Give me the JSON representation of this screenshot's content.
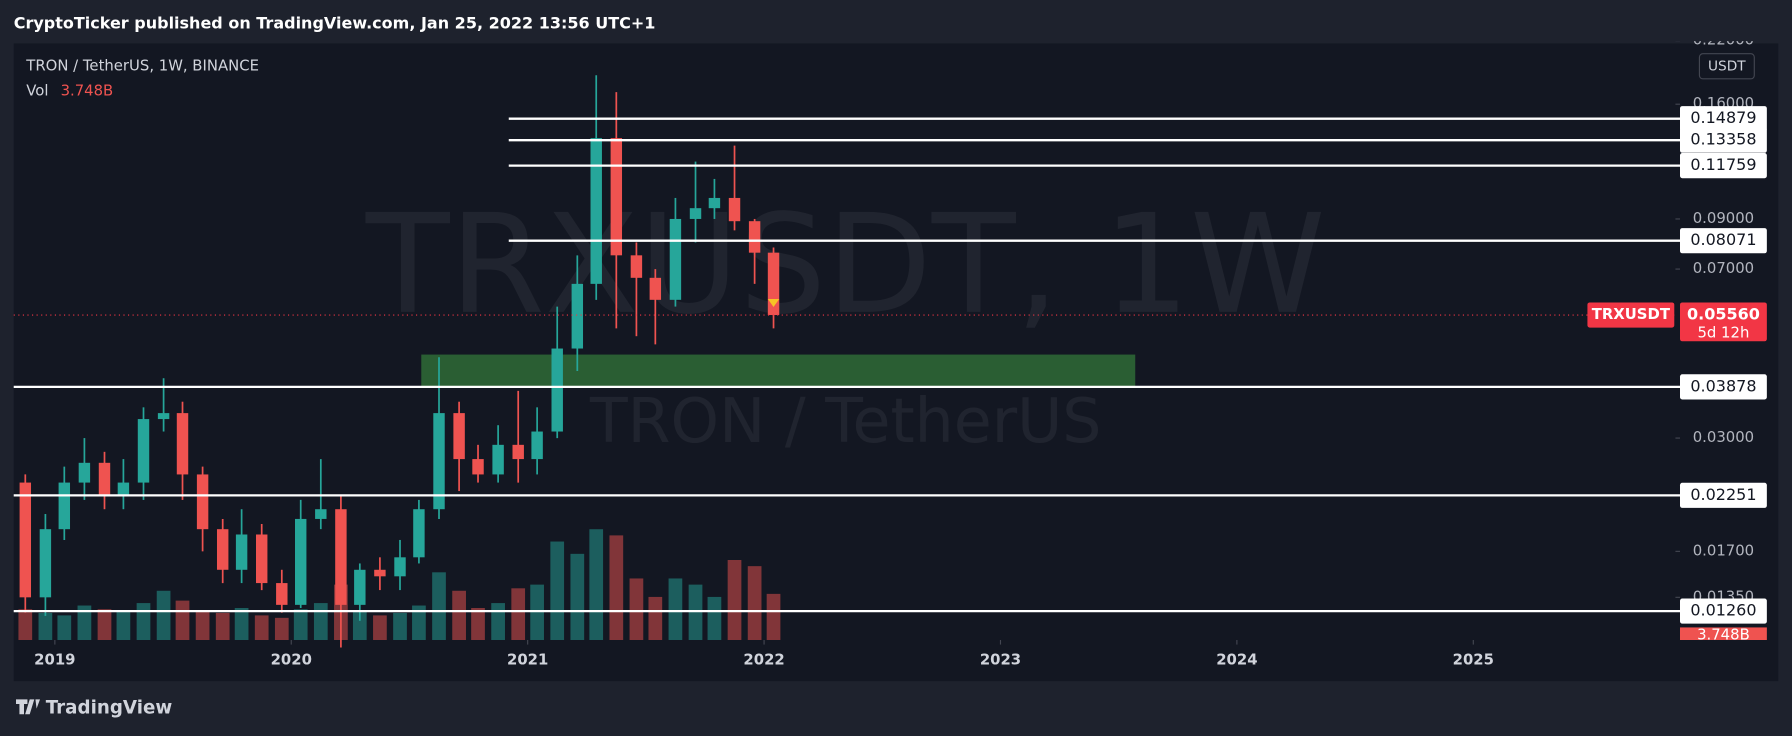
{
  "page": {
    "header": "CryptoTicker published on TradingView.com, Jan 25, 2022 13:56 UTC+1",
    "footer": "TradingView"
  },
  "chart_data": {
    "type": "candlestick",
    "title": "TRON / TetherUS, 1W, BINANCE",
    "watermark": "TRXUSDT, 1W",
    "watermark_subtitle": "TRON / TetherUS",
    "currency": "USDT",
    "log_scale": true,
    "up_color": "#26a69a",
    "down_color": "#ef5350",
    "xlim": [
      2018.826,
      2025.855
    ],
    "xticks": [
      2019,
      2020,
      2021,
      2022,
      2023,
      2024,
      2025
    ],
    "ylim": [
      0.0109,
      0.217
    ],
    "yticks": [
      {
        "value": 0.22,
        "label": "0.22000"
      },
      {
        "value": 0.16,
        "label": "0.16000"
      },
      {
        "value": 0.09,
        "label": "0.09000"
      },
      {
        "value": 0.07,
        "label": "0.07000"
      },
      {
        "value": 0.03,
        "label": "0.03000"
      },
      {
        "value": 0.017,
        "label": "0.01700"
      },
      {
        "value": 0.0135,
        "label": "0.01350"
      }
    ],
    "x": [
      2018.875,
      2018.96,
      2019.04,
      2019.125,
      2019.21,
      2019.29,
      2019.375,
      2019.46,
      2019.54,
      2019.625,
      2019.71,
      2019.79,
      2019.875,
      2019.96,
      2020.04,
      2020.125,
      2020.21,
      2020.29,
      2020.375,
      2020.46,
      2020.54,
      2020.625,
      2020.71,
      2020.79,
      2020.875,
      2020.96,
      2021.04,
      2021.125,
      2021.21,
      2021.29,
      2021.375,
      2021.46,
      2021.54,
      2021.625,
      2021.71,
      2021.79,
      2021.875,
      2021.96,
      2022.04
    ],
    "open": [
      0.024,
      0.0135,
      0.019,
      0.024,
      0.0265,
      0.0225,
      0.024,
      0.033,
      0.034,
      0.025,
      0.019,
      0.0155,
      0.0185,
      0.0145,
      0.013,
      0.02,
      0.021,
      0.013,
      0.0155,
      0.015,
      0.0165,
      0.021,
      0.034,
      0.027,
      0.025,
      0.029,
      0.027,
      0.031,
      0.047,
      0.065,
      0.135,
      0.075,
      0.067,
      0.06,
      0.09,
      0.095,
      0.1,
      0.089,
      0.076
    ],
    "high": [
      0.025,
      0.0205,
      0.026,
      0.03,
      0.028,
      0.027,
      0.035,
      0.0405,
      0.036,
      0.026,
      0.02,
      0.021,
      0.0195,
      0.0155,
      0.022,
      0.027,
      0.0225,
      0.016,
      0.0165,
      0.018,
      0.022,
      0.045,
      0.036,
      0.029,
      0.032,
      0.038,
      0.035,
      0.058,
      0.075,
      0.185,
      0.17,
      0.08,
      0.07,
      0.1,
      0.12,
      0.11,
      0.13,
      0.09,
      0.078
    ],
    "low": [
      0.0125,
      0.0123,
      0.018,
      0.022,
      0.021,
      0.021,
      0.022,
      0.031,
      0.022,
      0.017,
      0.0145,
      0.0145,
      0.014,
      0.0125,
      0.0128,
      0.019,
      0.0105,
      0.012,
      0.014,
      0.014,
      0.016,
      0.02,
      0.023,
      0.024,
      0.024,
      0.024,
      0.025,
      0.03,
      0.042,
      0.06,
      0.052,
      0.05,
      0.048,
      0.058,
      0.08,
      0.09,
      0.085,
      0.065,
      0.052
    ],
    "close": [
      0.0135,
      0.019,
      0.024,
      0.0265,
      0.0225,
      0.024,
      0.033,
      0.034,
      0.025,
      0.019,
      0.0155,
      0.0185,
      0.0145,
      0.013,
      0.02,
      0.021,
      0.013,
      0.0155,
      0.015,
      0.0165,
      0.021,
      0.034,
      0.027,
      0.025,
      0.029,
      0.027,
      0.031,
      0.047,
      0.065,
      0.135,
      0.075,
      0.067,
      0.06,
      0.09,
      0.095,
      0.1,
      0.089,
      0.076,
      0.0556
    ],
    "volume_name": "Vol",
    "volume": [
      2.5,
      2.2,
      2.0,
      2.8,
      2.5,
      2.4,
      3.0,
      4.0,
      3.2,
      2.4,
      2.2,
      2.6,
      2.0,
      1.8,
      2.5,
      3.0,
      4.5,
      2.3,
      2.0,
      2.2,
      2.8,
      5.5,
      4.0,
      2.6,
      3.0,
      4.2,
      4.5,
      8.0,
      7.0,
      9.0,
      8.5,
      5.0,
      3.5,
      5.0,
      4.5,
      3.5,
      6.5,
      6.0,
      3.748
    ],
    "volume_label": "3.748B",
    "volume_ylim": [
      0,
      13
    ],
    "zone": {
      "low": 0.0388,
      "high": 0.0456,
      "x": [
        2020.55,
        2023.57
      ],
      "color": "#2a5e33"
    },
    "levels": [
      {
        "value": 0.14879,
        "start": 2020.92
      },
      {
        "value": 0.13358,
        "start": 2020.92
      },
      {
        "value": 0.11759,
        "start": 2020.92
      },
      {
        "value": 0.08071,
        "start": 2020.92
      },
      {
        "value": 0.03878,
        "start": 2018.826
      },
      {
        "value": 0.02251,
        "start": 2018.826
      },
      {
        "value": 0.0126,
        "label": "0.01260",
        "start": 2018.826
      }
    ],
    "last_price": {
      "value": 0.0556,
      "label": "0.05560",
      "symbol": "TRXUSDT",
      "countdown": "5d 12h",
      "color": "#f23645"
    }
  }
}
